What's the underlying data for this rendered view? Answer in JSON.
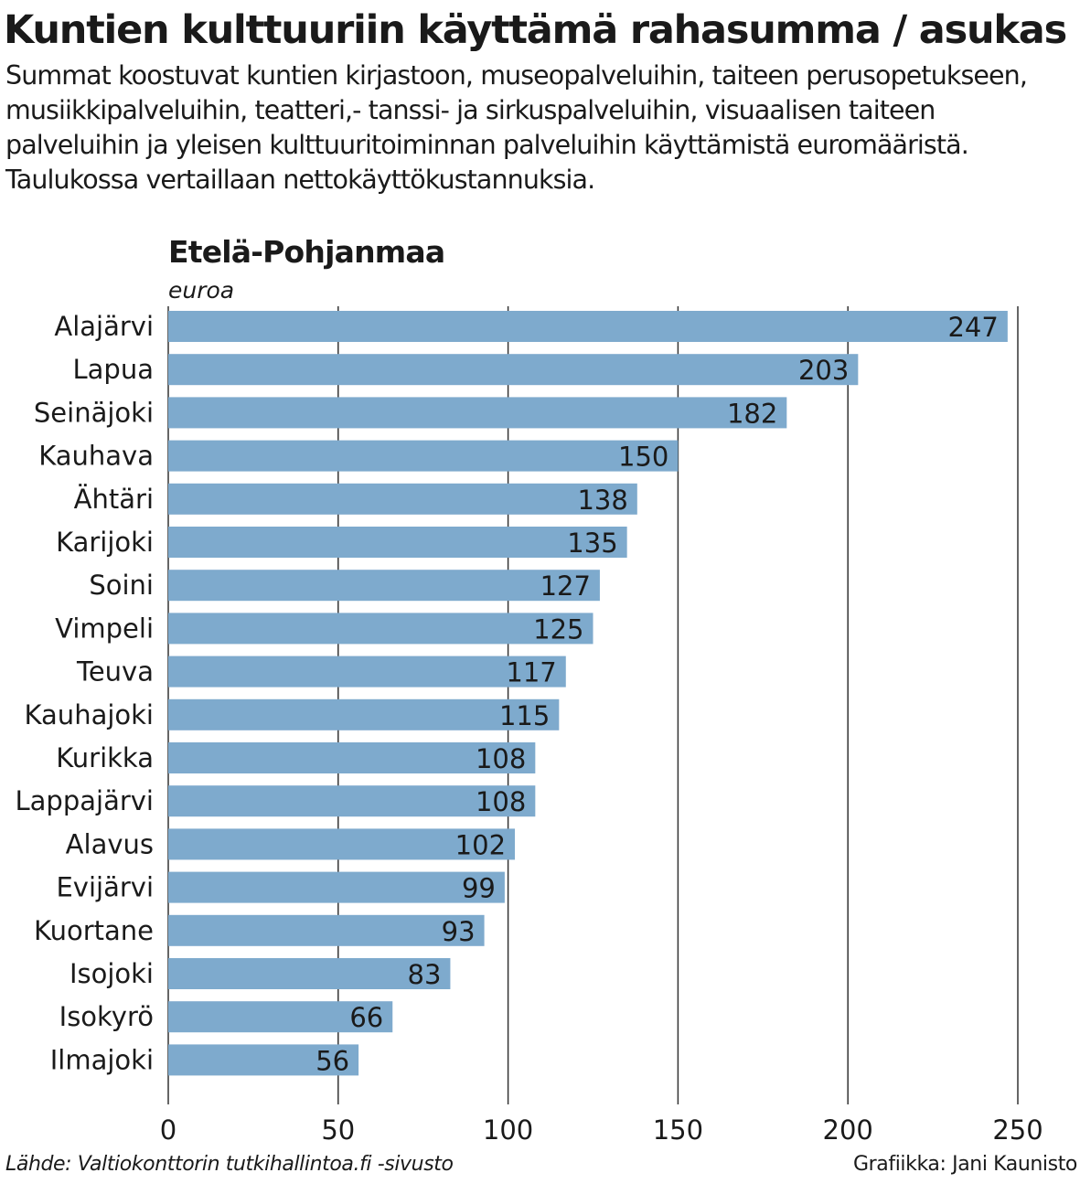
{
  "title": "Kuntien kulttuuriin käyttämä rahasumma / asukas",
  "subtitle": "Summat koostuvat kuntien kirjastoon, museopalveluihin, taiteen perusopetukseen, musiikkipalveluihin, teatteri,- tanssi- ja sirkuspalveluihin, visuaalisen taiteen palveluihin ja yleisen kulttuuritoiminnan palveluihin käyttämistä euromääristä. Taulukossa vertaillaan nettokäyttökustannuksia.",
  "source": "Lähde: Valtiokonttorin tutkihallintoa.fi -sivusto",
  "credit": "Grafiikka: Jani Kaunisto",
  "chart_data": {
    "type": "bar",
    "orientation": "horizontal",
    "title": "Etelä-Pohjanmaa",
    "unit_label": "euroa",
    "categories": [
      "Alajärvi",
      "Lapua",
      "Seinäjoki",
      "Kauhava",
      "Ähtäri",
      "Karijoki",
      "Soini",
      "Vimpeli",
      "Teuva",
      "Kauhajoki",
      "Kurikka",
      "Lappajärvi",
      "Alavus",
      "Evijärvi",
      "Kuortane",
      "Isojoki",
      "Isokyrö",
      "Ilmajoki"
    ],
    "values": [
      247,
      203,
      182,
      150,
      138,
      135,
      127,
      125,
      117,
      115,
      108,
      108,
      102,
      99,
      93,
      83,
      66,
      56
    ],
    "xlim": [
      0,
      250
    ],
    "xticks": [
      0,
      50,
      100,
      150,
      200,
      250
    ],
    "grid": true,
    "data_labels": true,
    "bar_color": "#7eaacd",
    "grid_color": "#333333"
  }
}
